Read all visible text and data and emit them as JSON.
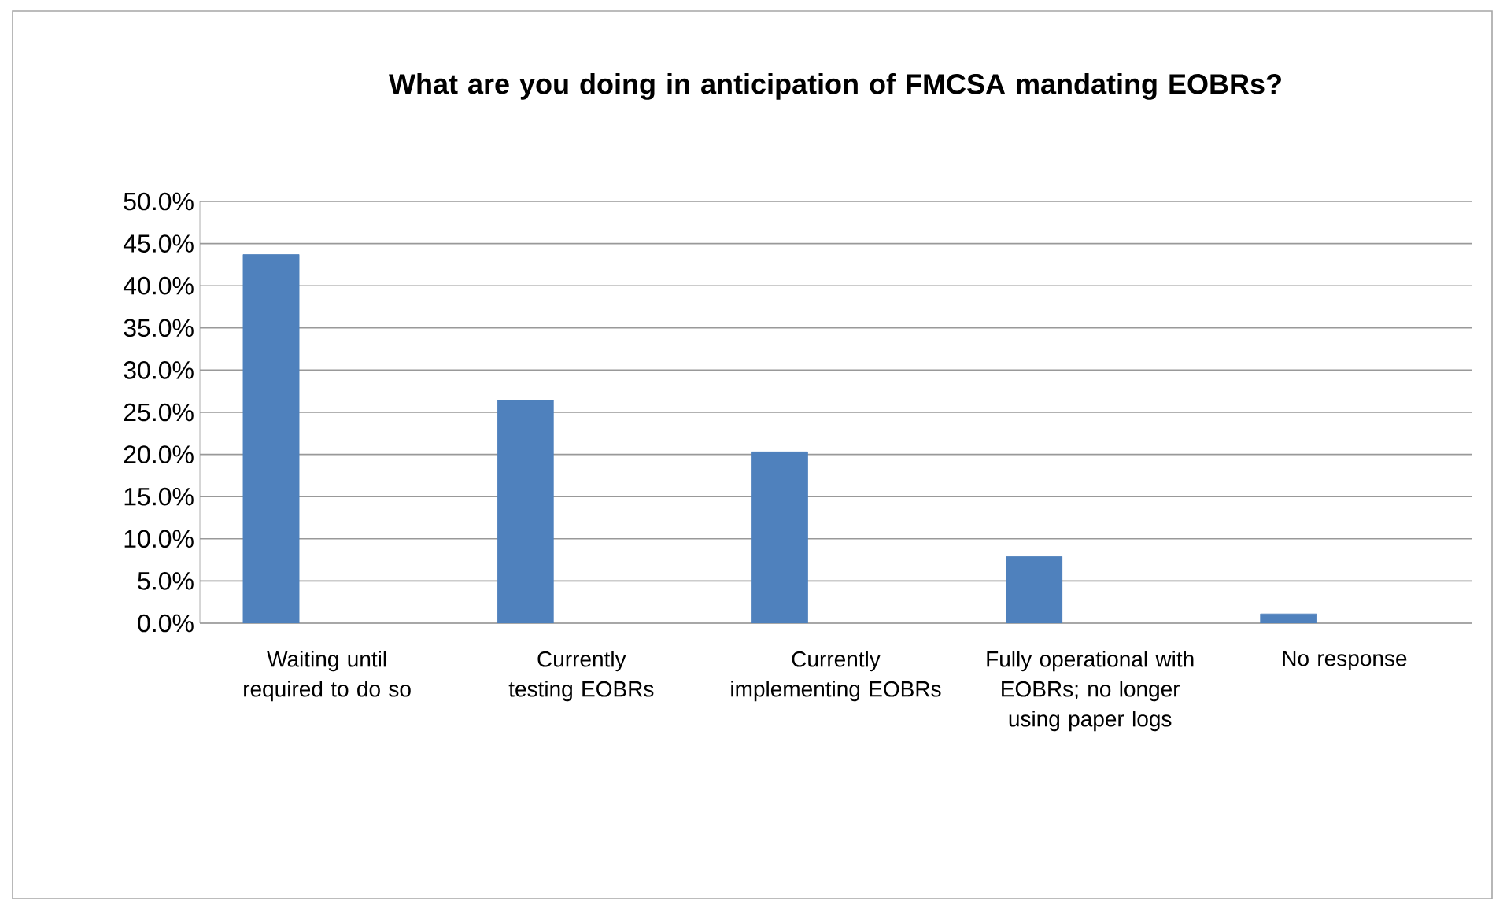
{
  "chart_data": {
    "type": "bar",
    "title": "What are you doing in anticipation of FMCSA mandating EOBRs?",
    "categories": [
      "Waiting until required to do so",
      "Currently testing EOBRs",
      "Currently implementing EOBRs",
      "Fully operational with EOBRs; no longer using paper logs",
      "No response"
    ],
    "values": [
      43.7,
      26.4,
      20.3,
      7.9,
      1.1
    ],
    "color": "#4f81bd",
    "ylim": [
      0,
      50
    ],
    "yticks": [
      {
        "value": 0,
        "label": "0.0%"
      },
      {
        "value": 5,
        "label": "5.0%"
      },
      {
        "value": 10,
        "label": "10.0%"
      },
      {
        "value": 15,
        "label": "15.0%"
      },
      {
        "value": 20,
        "label": "20.0%"
      },
      {
        "value": 25,
        "label": "25.0%"
      },
      {
        "value": 30,
        "label": "30.0%"
      },
      {
        "value": 35,
        "label": "35.0%"
      },
      {
        "value": 40,
        "label": "40.0%"
      },
      {
        "value": 45,
        "label": "45.0%"
      },
      {
        "value": 50,
        "label": "50.0%"
      }
    ],
    "grid": "y"
  }
}
